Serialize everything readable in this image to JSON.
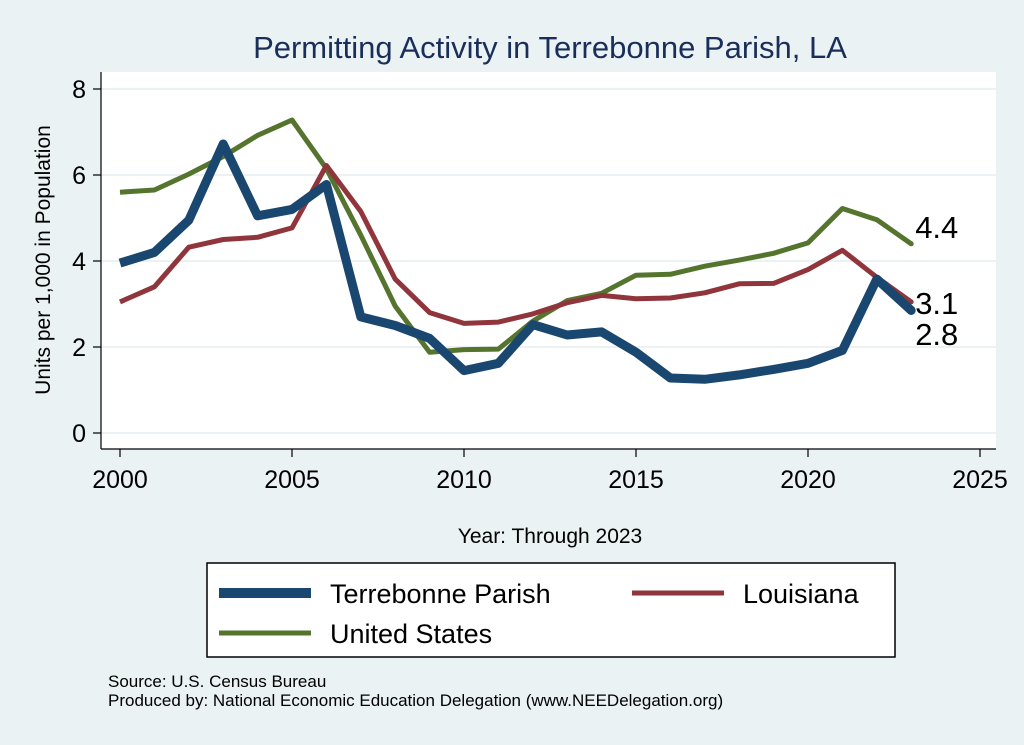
{
  "chart_data": {
    "type": "line",
    "title": "Permitting Activity in Terrebonne Parish, LA",
    "xlabel": "Year: Through 2023",
    "ylabel": "Units per 1,000 in Population",
    "xlim": [
      2000,
      2025
    ],
    "ylim": [
      0,
      8
    ],
    "x_ticks": [
      2000,
      2005,
      2010,
      2015,
      2020,
      2025
    ],
    "y_ticks": [
      0,
      2,
      4,
      6,
      8
    ],
    "grid": true,
    "legend_position": "bottom",
    "x": [
      2000,
      2001,
      2002,
      2003,
      2004,
      2005,
      2006,
      2007,
      2008,
      2009,
      2010,
      2011,
      2012,
      2013,
      2014,
      2015,
      2016,
      2017,
      2018,
      2019,
      2020,
      2021,
      2022,
      2023
    ],
    "series": [
      {
        "name": "Terrebonne Parish",
        "color": "#1a476f",
        "values": [
          3.95,
          4.2,
          4.95,
          6.72,
          5.05,
          5.2,
          5.78,
          2.7,
          2.5,
          2.2,
          1.45,
          1.62,
          2.52,
          2.28,
          2.35,
          1.88,
          1.28,
          1.25,
          1.35,
          1.48,
          1.62,
          1.92,
          3.58,
          2.85
        ],
        "end_label": "2.8"
      },
      {
        "name": "Louisiana",
        "color": "#90353b",
        "values": [
          3.05,
          3.4,
          4.32,
          4.5,
          4.55,
          4.77,
          6.22,
          5.15,
          3.58,
          2.8,
          2.55,
          2.58,
          2.77,
          3.03,
          3.2,
          3.12,
          3.14,
          3.26,
          3.47,
          3.48,
          3.8,
          4.25,
          3.62,
          3.05
        ],
        "end_label": "3.1"
      },
      {
        "name": "United States",
        "color": "#55752f",
        "values": [
          5.6,
          5.65,
          6.02,
          6.43,
          6.92,
          7.28,
          6.15,
          4.6,
          2.95,
          1.88,
          1.94,
          1.95,
          2.6,
          3.08,
          3.25,
          3.67,
          3.69,
          3.88,
          4.02,
          4.18,
          4.42,
          5.22,
          4.96,
          4.4
        ],
        "end_label": "4.4"
      }
    ],
    "notes": [
      "Source: U.S. Census Bureau",
      "Produced by: National Economic Education Delegation (www.NEEDelegation.org)"
    ]
  }
}
